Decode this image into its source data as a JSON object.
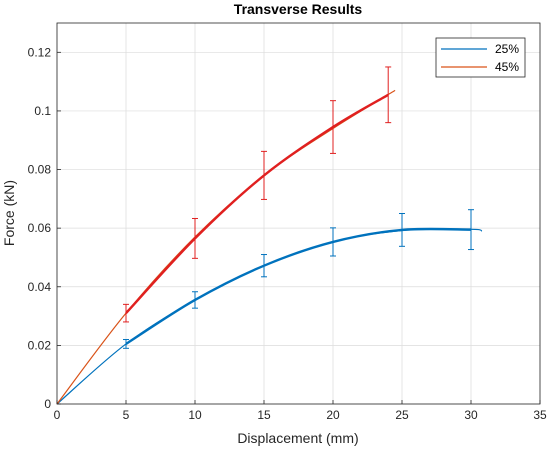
{
  "chart_data": {
    "type": "line",
    "title": "Transverse Results",
    "xlabel": "Displacement (mm)",
    "ylabel": "Force (kN)",
    "xlim": [
      0,
      35
    ],
    "ylim": [
      0,
      0.13
    ],
    "xticks": [
      0,
      5,
      10,
      15,
      20,
      25,
      30,
      35
    ],
    "yticks": [
      0,
      0.02,
      0.04,
      0.06,
      0.08,
      0.1,
      0.12
    ],
    "xtick_labels": [
      "0",
      "5",
      "10",
      "15",
      "20",
      "25",
      "30",
      "35"
    ],
    "ytick_labels": [
      "0",
      "0.02",
      "0.04",
      "0.06",
      "0.08",
      "0.1",
      "0.12"
    ],
    "grid": true,
    "legend_position": "top-right",
    "series": [
      {
        "name": "25%",
        "color": "#0072BD",
        "fit": {
          "x": [
            0,
            5,
            10,
            15,
            20,
            25,
            30,
            30.8
          ],
          "y": [
            0.0,
            0.0205,
            0.0355,
            0.0472,
            0.0553,
            0.0592,
            0.0596,
            0.059
          ]
        },
        "points": {
          "x": [
            5,
            10,
            15,
            20,
            25,
            30
          ],
          "y": [
            0.0205,
            0.0355,
            0.0472,
            0.0553,
            0.0594,
            0.0595
          ]
        },
        "error": [
          0.0015,
          0.0028,
          0.0038,
          0.0048,
          0.0056,
          0.0068
        ]
      },
      {
        "name": "45%",
        "color": "#D95319",
        "fit": {
          "x": [
            0,
            5,
            10,
            15,
            20,
            24.5
          ],
          "y": [
            0.0,
            0.031,
            0.057,
            0.078,
            0.094,
            0.107
          ]
        },
        "points": {
          "x": [
            5,
            10,
            15,
            20,
            24
          ],
          "y": [
            0.031,
            0.0565,
            0.078,
            0.0945,
            0.1055
          ]
        },
        "error": [
          0.003,
          0.0068,
          0.0082,
          0.009,
          0.0095
        ]
      }
    ]
  }
}
